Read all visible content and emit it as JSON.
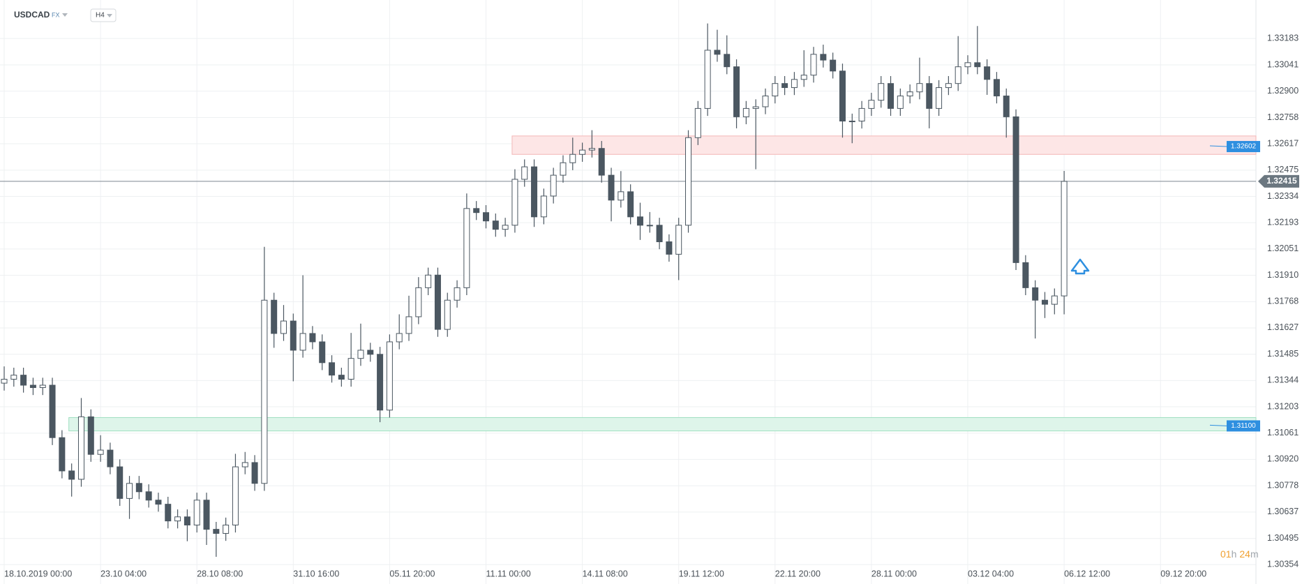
{
  "chart_data": {
    "type": "candlestick",
    "symbol": "USDCAD",
    "market": "FX",
    "timeframe": "H4",
    "categories": [
      "18.10.2019 00:00",
      null,
      null,
      null,
      null,
      null,
      null,
      null,
      null,
      null,
      "23.10 04:00",
      null,
      null,
      null,
      null,
      null,
      null,
      null,
      null,
      null,
      "28.10 08:00",
      null,
      null,
      null,
      null,
      null,
      null,
      null,
      null,
      null,
      "31.10 16:00",
      null,
      null,
      null,
      null,
      null,
      null,
      null,
      null,
      null,
      "05.11 20:00",
      null,
      null,
      null,
      null,
      null,
      null,
      null,
      null,
      null,
      "11.11 00:00",
      null,
      null,
      null,
      null,
      null,
      null,
      null,
      null,
      null,
      "14.11 08:00",
      null,
      null,
      null,
      null,
      null,
      null,
      null,
      null,
      null,
      "19.11 12:00",
      null,
      null,
      null,
      null,
      null,
      null,
      null,
      null,
      null,
      "22.11 20:00",
      null,
      null,
      null,
      null,
      null,
      null,
      null,
      null,
      null,
      "28.11 00:00",
      null,
      null,
      null,
      null,
      null,
      null,
      null,
      null,
      null,
      "03.12 04:00",
      null,
      null,
      null,
      null,
      null,
      null,
      null,
      null,
      null,
      "06.12 12:00",
      null,
      null,
      null,
      null,
      null,
      null,
      null,
      null,
      null,
      "09.12 20:00"
    ],
    "open": [
      1.3133,
      1.31351,
      1.31373,
      1.31319,
      1.31306,
      1.31319,
      1.31037,
      1.30858,
      1.30813,
      1.31149,
      1.30947,
      1.3097,
      1.3088,
      1.3071,
      1.30791,
      1.30746,
      1.30701,
      1.30679,
      1.30589,
      1.30611,
      1.30567,
      1.30701,
      1.30544,
      1.30522,
      1.30567,
      1.3088,
      1.30903,
      1.30791,
      1.31776,
      1.31597,
      1.31664,
      1.31507,
      1.31597,
      1.31552,
      1.3144,
      1.31373,
      1.31351,
      1.31463,
      1.31507,
      1.31485,
      1.31185,
      1.31552,
      1.31597,
      1.31687,
      1.31843,
      1.31911,
      1.31619,
      1.31776,
      1.31843,
      1.32269,
      1.32247,
      1.32202,
      1.32157,
      1.32179,
      1.32426,
      1.32493,
      1.32224,
      1.32336,
      1.32448,
      1.32515,
      1.3256,
      1.32583,
      1.32592,
      1.32448,
      1.32314,
      1.32359,
      1.32224,
      1.32179,
      1.32179,
      1.3209,
      1.32023,
      1.32179,
      1.3265,
      1.32807,
      1.3312,
      1.33098,
      1.33031,
      1.32762,
      1.32807,
      1.32816,
      1.32874,
      1.32941,
      1.32919,
      1.32963,
      1.32986,
      1.33098,
      1.33067,
      1.33008,
      1.32739,
      1.32739,
      1.32807,
      1.32851,
      1.32941,
      1.32807,
      1.32874,
      1.32896,
      1.32941,
      1.32807,
      1.32919,
      1.32941,
      1.33031,
      1.33053,
      1.33031,
      1.32963,
      1.32874,
      1.32762,
      1.31978,
      1.31843,
      1.31776,
      1.31754,
      1.31799,
      null,
      null,
      null,
      null,
      null,
      null,
      null,
      null,
      null,
      null
    ],
    "high": [
      1.3142,
      1.31413,
      1.31413,
      1.31359,
      1.31359,
      1.31359,
      1.31077,
      1.30898,
      1.3125,
      1.31189,
      1.3105,
      1.3101,
      1.3092,
      1.30831,
      1.30831,
      1.30786,
      1.30741,
      1.30719,
      1.30651,
      1.30651,
      1.30741,
      1.30741,
      1.30584,
      1.30607,
      1.3095,
      1.3096,
      1.30943,
      1.32063,
      1.31816,
      1.3175,
      1.31704,
      1.3191,
      1.31637,
      1.31592,
      1.3148,
      1.31413,
      1.316,
      1.3165,
      1.31547,
      1.31525,
      1.31592,
      1.317,
      1.318,
      1.319,
      1.31951,
      1.31951,
      1.31816,
      1.31883,
      1.3235,
      1.32309,
      1.32287,
      1.32242,
      1.32219,
      1.3248,
      1.32533,
      1.32533,
      1.32376,
      1.32488,
      1.32555,
      1.3265,
      1.32623,
      1.3269,
      1.32632,
      1.32488,
      1.3247,
      1.32399,
      1.323,
      1.3225,
      1.32219,
      1.3213,
      1.32219,
      1.3269,
      1.32847,
      1.33264,
      1.3323,
      1.332,
      1.33071,
      1.32847,
      1.32856,
      1.32914,
      1.32981,
      1.32981,
      1.33003,
      1.3312,
      1.33138,
      1.3315,
      1.33107,
      1.33048,
      1.32779,
      1.32847,
      1.32891,
      1.32981,
      1.32981,
      1.32914,
      1.32936,
      1.3308,
      1.32981,
      1.32959,
      1.32981,
      1.33196,
      1.33093,
      1.3325,
      1.33071,
      1.33003,
      1.32914,
      1.32802,
      1.32018,
      1.31883,
      1.3182,
      1.31839,
      1.32471,
      null,
      null,
      null,
      null,
      null,
      null,
      null,
      null,
      null,
      null
    ],
    "low": [
      1.3129,
      1.31311,
      1.31279,
      1.31266,
      1.31266,
      1.30997,
      1.30818,
      1.3072,
      1.30773,
      1.30907,
      1.30907,
      1.3084,
      1.3067,
      1.306,
      1.30706,
      1.30661,
      1.30639,
      1.30549,
      1.30549,
      1.3048,
      1.30527,
      1.3046,
      1.30396,
      1.30482,
      1.30527,
      1.3084,
      1.30751,
      1.30751,
      1.3152,
      1.31557,
      1.3134,
      1.31467,
      1.31512,
      1.314,
      1.31333,
      1.31311,
      1.31311,
      1.31423,
      1.31445,
      1.3112,
      1.31145,
      1.31512,
      1.31557,
      1.31647,
      1.31803,
      1.31579,
      1.31579,
      1.31736,
      1.31803,
      1.32207,
      1.32162,
      1.32117,
      1.32117,
      1.32139,
      1.32386,
      1.3217,
      1.32184,
      1.32296,
      1.32408,
      1.32475,
      1.3252,
      1.32543,
      1.32408,
      1.322,
      1.32274,
      1.32184,
      1.321,
      1.32139,
      1.3205,
      1.31983,
      1.31884,
      1.32139,
      1.3261,
      1.32767,
      1.33058,
      1.32991,
      1.327,
      1.32722,
      1.3248,
      1.32776,
      1.32834,
      1.32879,
      1.32879,
      1.32923,
      1.32946,
      1.33027,
      1.32968,
      1.3265,
      1.3262,
      1.32699,
      1.32767,
      1.32811,
      1.32767,
      1.32767,
      1.32834,
      1.32856,
      1.327,
      1.32767,
      1.32879,
      1.32901,
      1.32991,
      1.32991,
      1.3288,
      1.32834,
      1.3265,
      1.31938,
      1.31803,
      1.3157,
      1.3168,
      1.317,
      1.317,
      null,
      null,
      null,
      null,
      null,
      null,
      null,
      null,
      null,
      null
    ],
    "close": [
      1.31351,
      1.31373,
      1.31319,
      1.31306,
      1.31319,
      1.31037,
      1.30858,
      1.30813,
      1.31149,
      1.30947,
      1.3097,
      1.3088,
      1.3071,
      1.30791,
      1.30746,
      1.30701,
      1.30679,
      1.30589,
      1.30611,
      1.30567,
      1.30701,
      1.30544,
      1.30522,
      1.30567,
      1.3088,
      1.30903,
      1.30791,
      1.31776,
      1.31597,
      1.31664,
      1.31507,
      1.31597,
      1.31552,
      1.3144,
      1.31373,
      1.31351,
      1.31463,
      1.31507,
      1.31485,
      1.31185,
      1.31552,
      1.31597,
      1.31687,
      1.31843,
      1.31911,
      1.31619,
      1.31776,
      1.31843,
      1.32269,
      1.32247,
      1.32202,
      1.32157,
      1.32179,
      1.32426,
      1.32493,
      1.32224,
      1.32336,
      1.32448,
      1.32515,
      1.3256,
      1.32583,
      1.32592,
      1.32448,
      1.32314,
      1.32359,
      1.32224,
      1.32179,
      1.32179,
      1.3209,
      1.32023,
      1.32179,
      1.3265,
      1.32807,
      1.3312,
      1.33098,
      1.33031,
      1.32762,
      1.32807,
      1.32816,
      1.32874,
      1.32941,
      1.32919,
      1.32963,
      1.32986,
      1.33098,
      1.33067,
      1.33008,
      1.32739,
      1.32739,
      1.32807,
      1.32851,
      1.32941,
      1.32807,
      1.32874,
      1.32896,
      1.32941,
      1.32807,
      1.32919,
      1.32941,
      1.33031,
      1.33053,
      1.33031,
      1.32963,
      1.32874,
      1.32762,
      1.31978,
      1.31843,
      1.31776,
      1.31754,
      1.31799,
      1.32415,
      null,
      null,
      null,
      null,
      null,
      null,
      null,
      null,
      null,
      null
    ],
    "colors": {
      "up": "#ffffff",
      "down": "#4b5761",
      "outline": "#4b5761"
    },
    "ylim": [
      1.3025,
      1.3339
    ],
    "yticks": [
      {
        "value": 1.33183,
        "label": "1.33183"
      },
      {
        "value": 1.33041,
        "label": "1.33041"
      },
      {
        "value": 1.329,
        "label": "1.32900"
      },
      {
        "value": 1.32758,
        "label": "1.32758"
      },
      {
        "value": 1.32617,
        "label": "1.32617"
      },
      {
        "value": 1.32475,
        "label": "1.32475"
      },
      {
        "value": 1.32334,
        "label": "1.32334"
      },
      {
        "value": 1.32193,
        "label": "1.32193"
      },
      {
        "value": 1.32051,
        "label": "1.32051"
      },
      {
        "value": 1.3191,
        "label": "1.31910"
      },
      {
        "value": 1.31768,
        "label": "1.31768"
      },
      {
        "value": 1.31627,
        "label": "1.31627"
      },
      {
        "value": 1.31485,
        "label": "1.31485"
      },
      {
        "value": 1.31344,
        "label": "1.31344"
      },
      {
        "value": 1.31203,
        "label": "1.31203"
      },
      {
        "value": 1.31061,
        "label": "1.31061"
      },
      {
        "value": 1.3092,
        "label": "1.30920"
      },
      {
        "value": 1.30778,
        "label": "1.30778"
      },
      {
        "value": 1.30637,
        "label": "1.30637"
      },
      {
        "value": 1.30495,
        "label": "1.30495"
      },
      {
        "value": 1.30354,
        "label": "1.30354"
      }
    ],
    "grid": true,
    "zones": [
      {
        "start": 53,
        "top": 1.32659,
        "bottom": 1.3256,
        "level": {
          "value": 1.32602,
          "label": "1.32602"
        },
        "fill": "#fde6e6",
        "stroke": "#f3b6b6"
      },
      {
        "start": 7,
        "top": 1.31145,
        "bottom": 1.31073,
        "level": {
          "value": 1.311,
          "label": "1.31100"
        },
        "fill": "#def5ea",
        "stroke": "#9edfc0"
      }
    ],
    "last_price": {
      "value": 1.32415,
      "label": "1.32415"
    },
    "timer": {
      "hours": "01",
      "hours_unit": "h",
      "minutes": "24",
      "minutes_unit": "m"
    }
  }
}
